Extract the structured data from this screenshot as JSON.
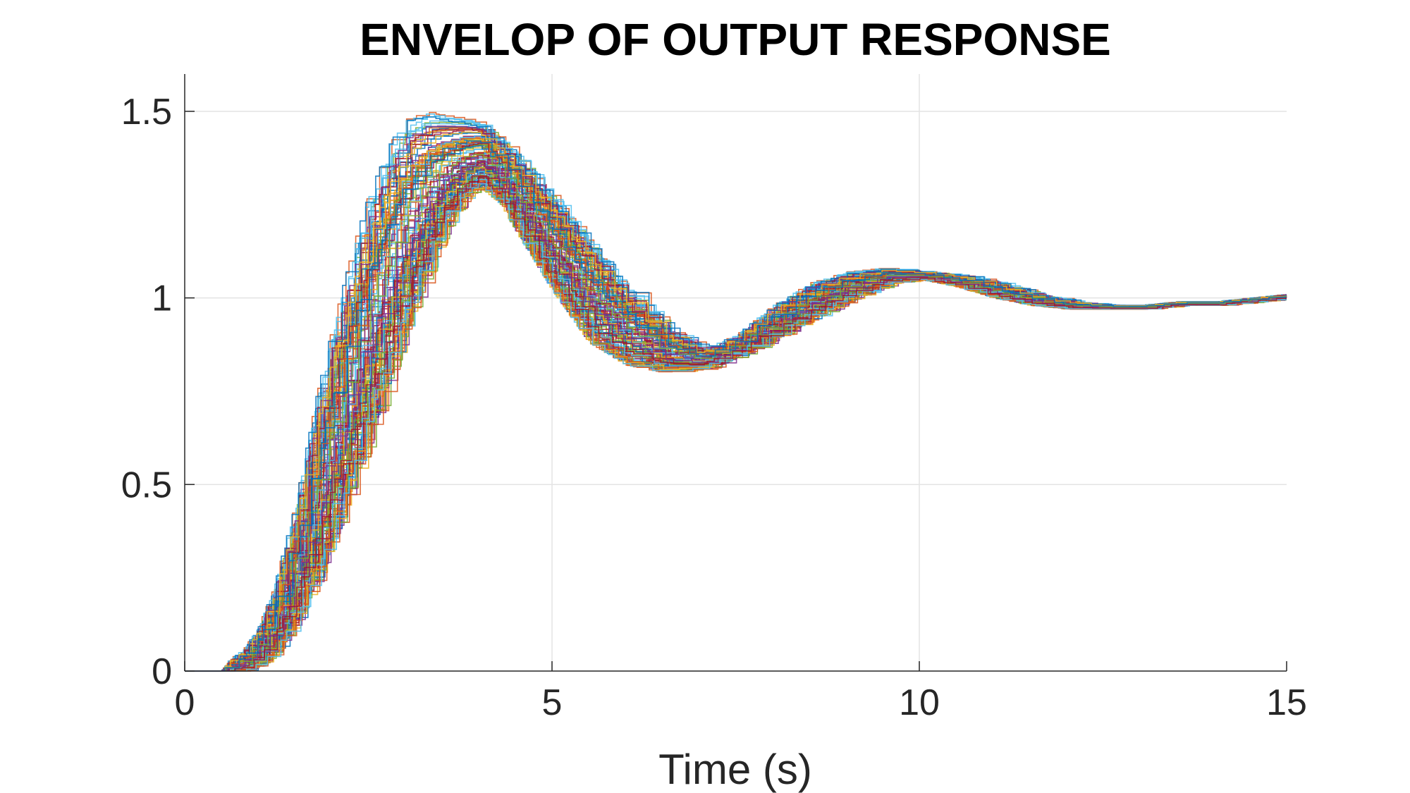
{
  "chart_data": {
    "type": "line",
    "title": "ENVELOP OF OUTPUT RESPONSE",
    "xlabel": "Time (s)",
    "ylabel": "",
    "xlim": [
      0,
      15
    ],
    "ylim": [
      0,
      1.6
    ],
    "x_ticks": [
      0,
      5,
      10,
      15
    ],
    "x_tick_labels": [
      "0",
      "5",
      "10",
      "15"
    ],
    "y_ticks": [
      0,
      0.5,
      1,
      1.5
    ],
    "y_tick_labels": [
      "0",
      "0.5",
      "1",
      "1.5"
    ],
    "grid": true,
    "legend": "none",
    "style": "many overlapping stair-step response traces forming an envelope",
    "envelope": {
      "x": [
        0,
        0.5,
        0.6,
        0.8,
        1.0,
        1.2,
        1.5,
        1.8,
        2.0,
        2.3,
        2.5,
        2.8,
        3.0,
        3.3,
        3.5,
        3.8,
        4.0,
        4.3,
        4.5,
        5.0,
        5.5,
        6.0,
        6.5,
        7.0,
        7.5,
        8.0,
        8.5,
        9.0,
        9.5,
        10.0,
        10.5,
        11.0,
        11.5,
        12.0,
        12.5,
        13.0,
        13.5,
        14.0,
        14.5,
        15.0
      ],
      "lower": [
        0,
        0,
        0,
        0,
        0.02,
        0.05,
        0.14,
        0.26,
        0.36,
        0.52,
        0.64,
        0.8,
        0.92,
        1.08,
        1.18,
        1.27,
        1.3,
        1.25,
        1.18,
        1.02,
        0.88,
        0.82,
        0.8,
        0.81,
        0.85,
        0.9,
        0.95,
        1.0,
        1.04,
        1.05,
        1.03,
        1.0,
        0.98,
        0.97,
        0.97,
        0.97,
        0.98,
        0.98,
        0.99,
        1.0
      ],
      "upper": [
        0,
        0,
        0.03,
        0.06,
        0.12,
        0.22,
        0.45,
        0.75,
        0.92,
        1.15,
        1.28,
        1.42,
        1.48,
        1.5,
        1.49,
        1.48,
        1.47,
        1.42,
        1.38,
        1.27,
        1.15,
        1.02,
        0.92,
        0.86,
        0.9,
        0.98,
        1.04,
        1.07,
        1.08,
        1.07,
        1.06,
        1.04,
        1.01,
        0.99,
        0.98,
        0.98,
        0.99,
        0.99,
        1.0,
        1.01
      ]
    },
    "trace_count": 120,
    "series_colors": [
      "#0072BD",
      "#D95319",
      "#EDB120",
      "#7E2F8E",
      "#77AC30",
      "#4DBEEE",
      "#A2142F"
    ]
  }
}
